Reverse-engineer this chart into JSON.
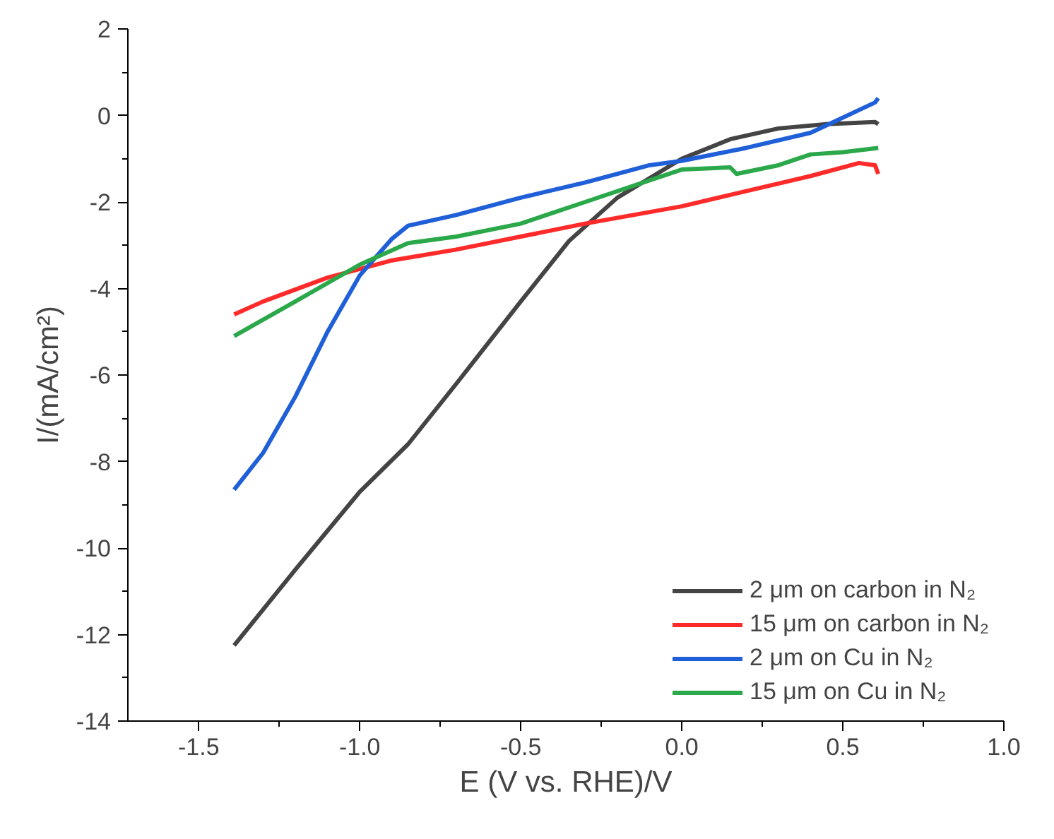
{
  "chart_data": {
    "type": "line",
    "xlabel": "E (V vs. RHE)/V",
    "ylabel": "I/(mA/cm²)",
    "xlim": [
      -1.72,
      1.0
    ],
    "ylim": [
      -14,
      2
    ],
    "xticks": [
      {
        "value": -1.5,
        "label": "-1.5"
      },
      {
        "value": -1.0,
        "label": "-1.0"
      },
      {
        "value": -0.5,
        "label": "-0.5"
      },
      {
        "value": 0.0,
        "label": "0.0"
      },
      {
        "value": 0.5,
        "label": "0.5"
      },
      {
        "value": 1.0,
        "label": "1.0"
      }
    ],
    "yticks": [
      -14,
      -12,
      -10,
      -8,
      -6,
      -4,
      -2,
      0,
      2
    ],
    "grid": false,
    "legend": "bottom right",
    "line_style": "solid",
    "marker": "none",
    "series": [
      {
        "name": "2 μm on carbon in N₂",
        "color": "#444444",
        "x": [
          -1.39,
          -1.2,
          -1.0,
          -0.85,
          -0.7,
          -0.5,
          -0.35,
          -0.2,
          0,
          0.15,
          0.3,
          0.45,
          0.6,
          0.61
        ],
        "values": [
          -12.25,
          -10.5,
          -8.7,
          -7.6,
          -6.2,
          -4.3,
          -2.9,
          -1.9,
          -1.0,
          -0.55,
          -0.3,
          -0.2,
          -0.15,
          -0.2
        ]
      },
      {
        "name": "15 μm on carbon in N₂",
        "color": "#ff2a2a",
        "x": [
          -1.39,
          -1.3,
          -1.1,
          -0.9,
          -0.7,
          -0.5,
          -0.3,
          0,
          0.2,
          0.4,
          0.55,
          0.6,
          0.61
        ],
        "values": [
          -4.6,
          -4.3,
          -3.75,
          -3.35,
          -3.1,
          -2.8,
          -2.5,
          -2.1,
          -1.75,
          -1.4,
          -1.1,
          -1.15,
          -1.35
        ]
      },
      {
        "name": "2 μm on Cu in N₂",
        "color": "#1f5fd8",
        "x": [
          -1.39,
          -1.3,
          -1.2,
          -1.1,
          -1.0,
          -0.9,
          -0.85,
          -0.7,
          -0.5,
          -0.3,
          -0.1,
          0,
          0.2,
          0.4,
          0.6,
          0.61
        ],
        "values": [
          -8.65,
          -7.8,
          -6.5,
          -5.0,
          -3.7,
          -2.85,
          -2.55,
          -2.3,
          -1.9,
          -1.55,
          -1.15,
          -1.05,
          -0.75,
          -0.4,
          0.3,
          0.4
        ]
      },
      {
        "name": "15 μm on Cu in N₂",
        "color": "#2aa84a",
        "x": [
          -1.39,
          -1.2,
          -1.0,
          -0.85,
          -0.7,
          -0.5,
          -0.3,
          -0.1,
          0,
          0.15,
          0.17,
          0.3,
          0.4,
          0.5,
          0.61
        ],
        "values": [
          -5.1,
          -4.3,
          -3.45,
          -2.95,
          -2.8,
          -2.5,
          -2.0,
          -1.5,
          -1.25,
          -1.2,
          -1.35,
          -1.15,
          -0.9,
          -0.85,
          -0.75
        ]
      }
    ]
  }
}
